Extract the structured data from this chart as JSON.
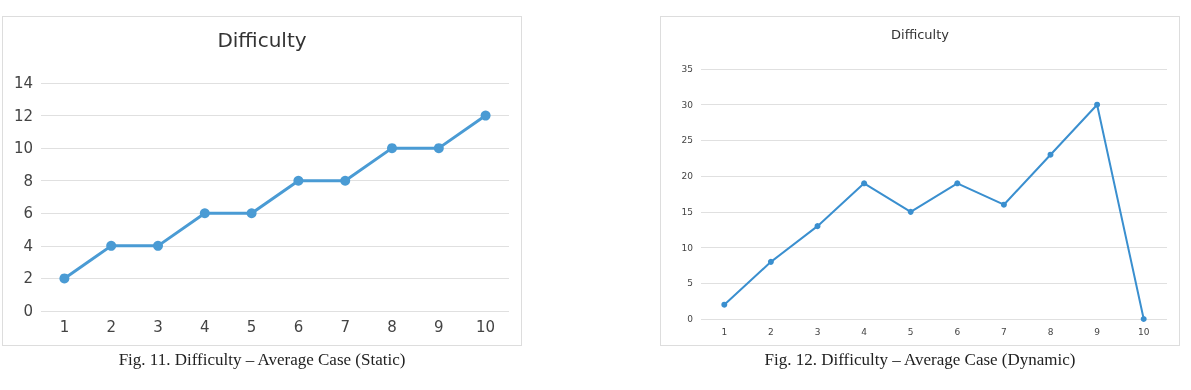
{
  "chart_data": [
    {
      "type": "line",
      "title": "Difficulty",
      "categories": [
        "1",
        "2",
        "3",
        "4",
        "5",
        "6",
        "7",
        "8",
        "9",
        "10"
      ],
      "series": [
        {
          "color": "#4a9bd4",
          "values": [
            2,
            4,
            4,
            6,
            6,
            8,
            8,
            10,
            10,
            12
          ]
        }
      ],
      "ylim": [
        0,
        14
      ],
      "yticks": [
        0,
        2,
        4,
        6,
        8,
        10,
        12,
        14
      ],
      "grid": "y",
      "marker": "circle",
      "line_style": "solid",
      "annotations": [
        "Fig. 11. Difficulty – Average Case (Static)"
      ]
    },
    {
      "type": "line",
      "title": "Difficulty",
      "categories": [
        "1",
        "2",
        "3",
        "4",
        "5",
        "6",
        "7",
        "8",
        "9",
        "10"
      ],
      "series": [
        {
          "color": "#3a8fcf",
          "values": [
            2,
            8,
            13,
            19,
            15,
            19,
            16,
            23,
            30,
            0
          ]
        }
      ],
      "ylim": [
        0,
        35
      ],
      "yticks": [
        0,
        5,
        10,
        15,
        20,
        25,
        30,
        35
      ],
      "grid": "y",
      "marker": "circle",
      "line_style": "solid",
      "annotations": [
        "Fig. 12. Difficulty – Average Case (Dynamic)"
      ]
    }
  ]
}
